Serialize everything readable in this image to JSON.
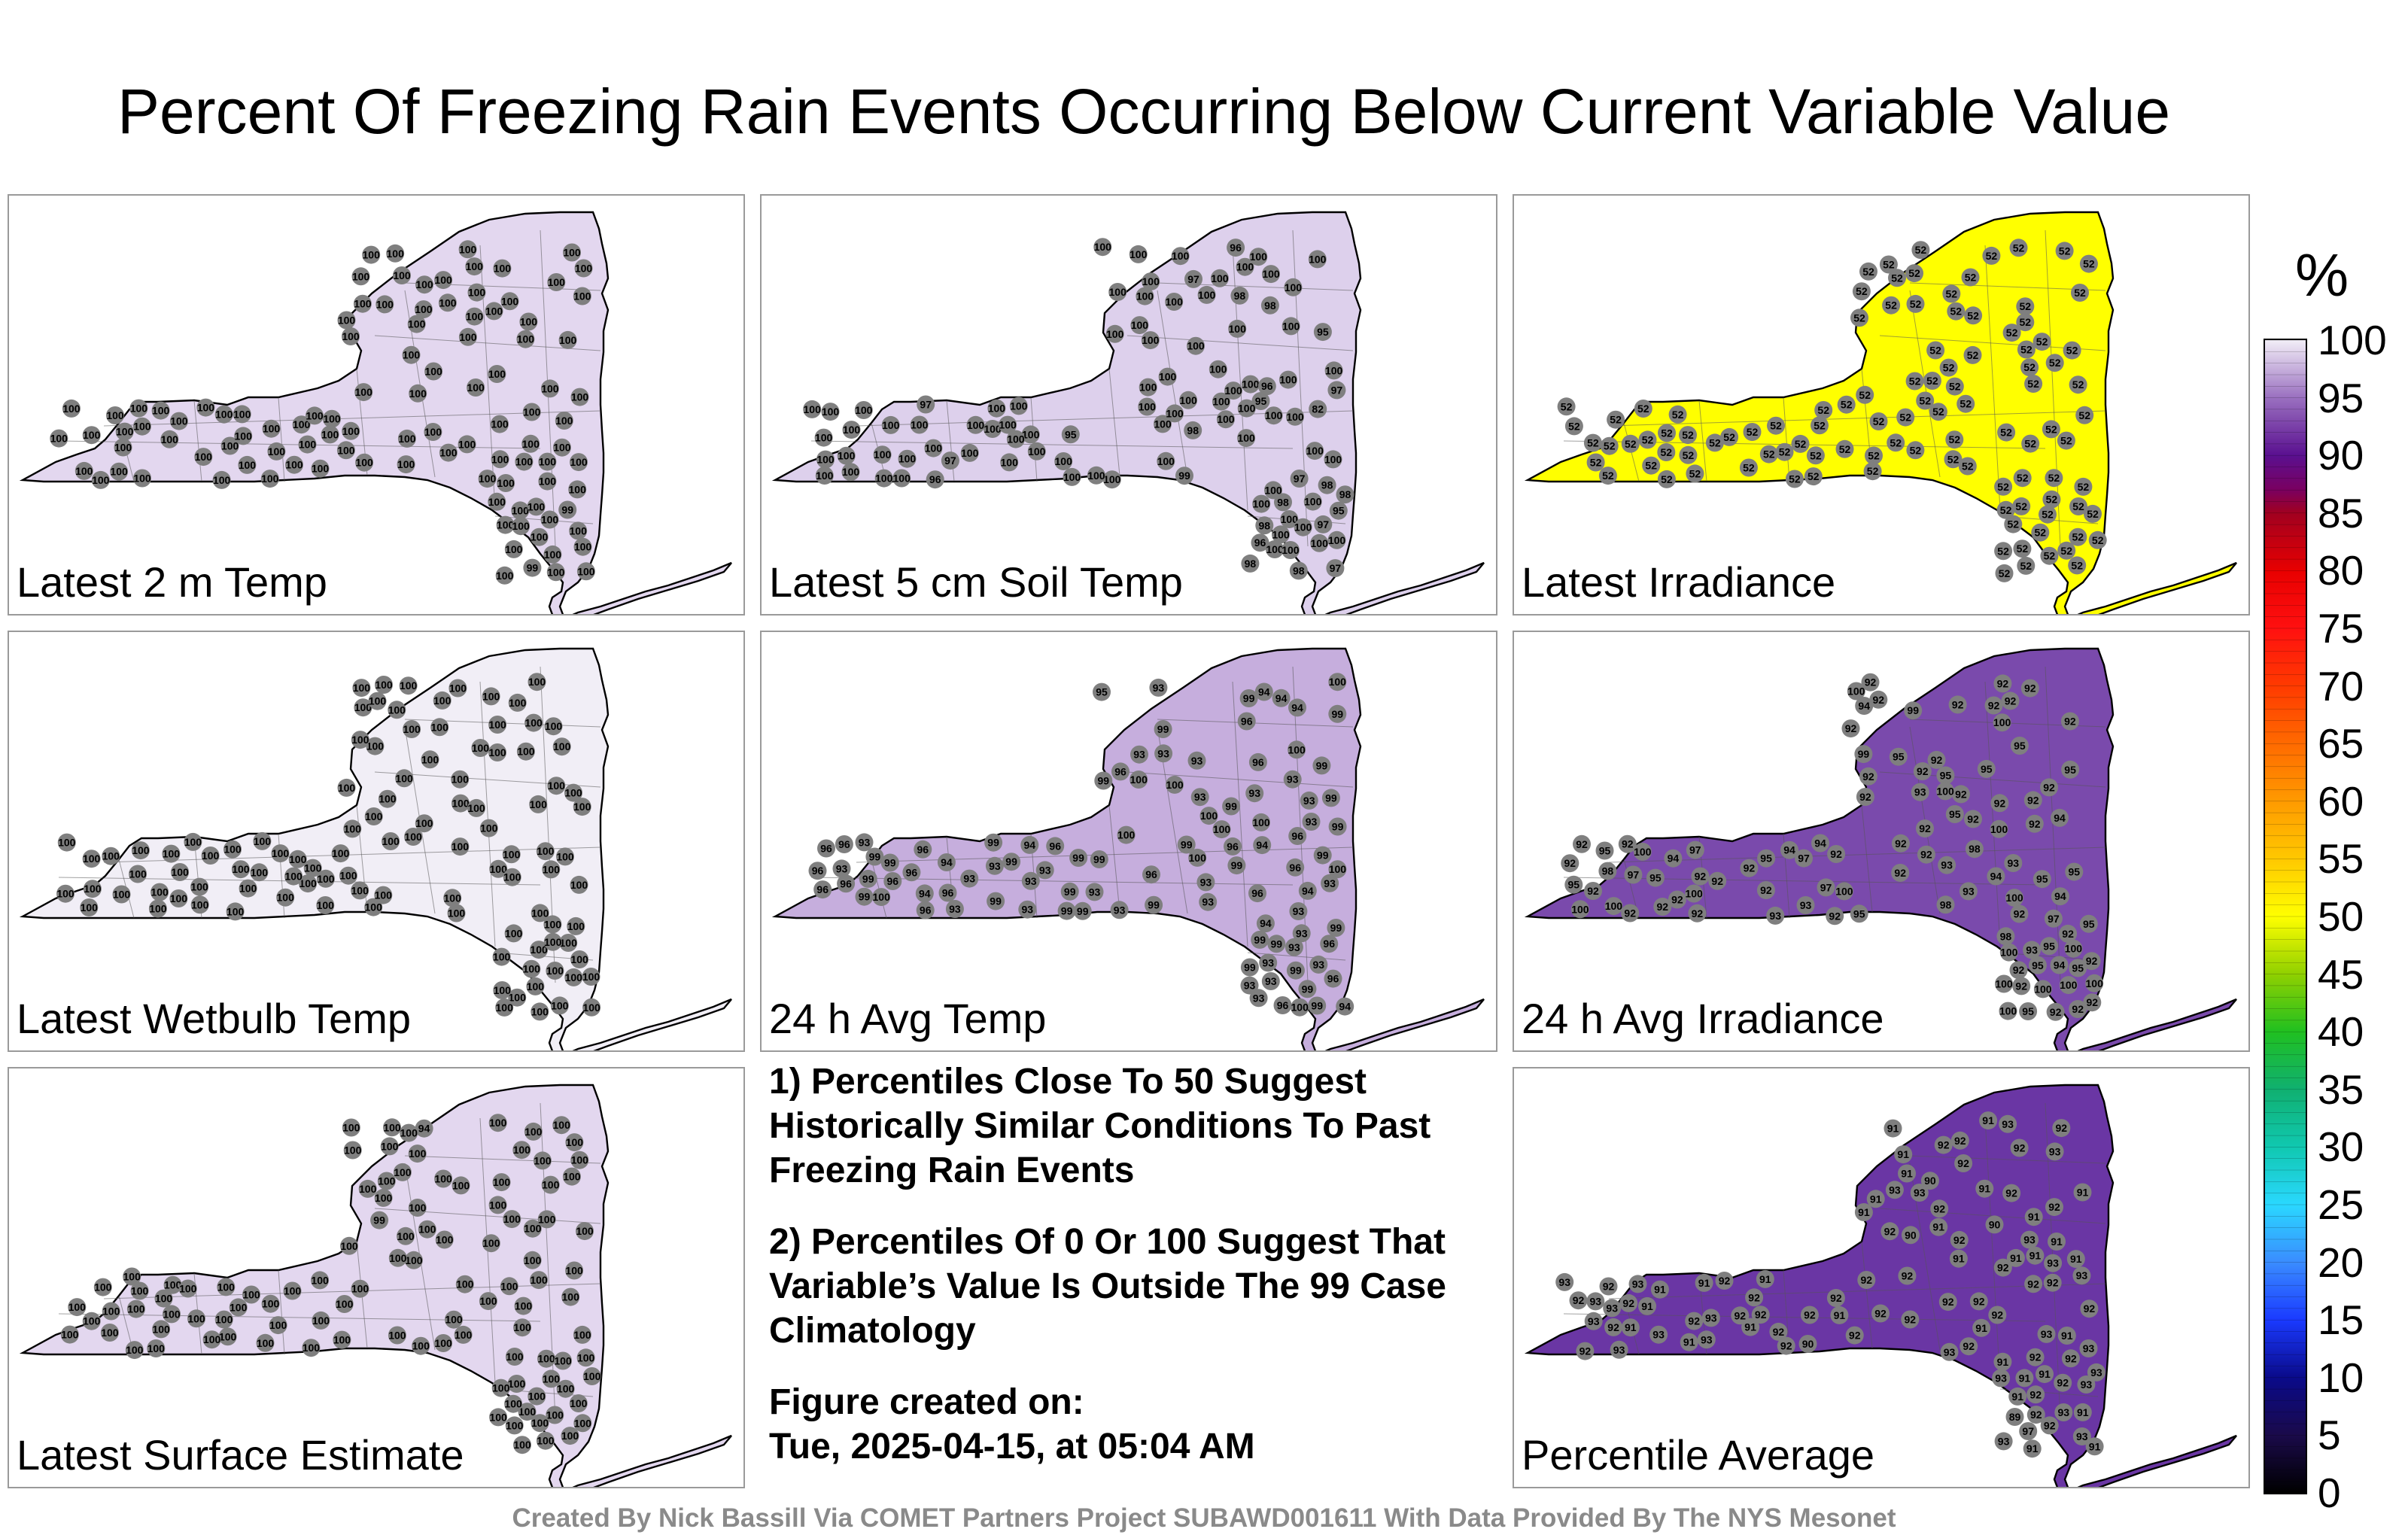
{
  "title": "Percent Of Freezing Rain Events Occurring Below Current Variable Value",
  "colorbar": {
    "unit": "%",
    "ticks": [
      "100",
      "95",
      "90",
      "85",
      "80",
      "75",
      "70",
      "65",
      "60",
      "55",
      "50",
      "45",
      "40",
      "35",
      "30",
      "25",
      "20",
      "15",
      "10",
      "5",
      "0"
    ],
    "stops": [
      {
        "v": 0,
        "c": "#000000"
      },
      {
        "v": 5,
        "c": "#1a0a4a"
      },
      {
        "v": 10,
        "c": "#0a0a8a"
      },
      {
        "v": 15,
        "c": "#1a3aff"
      },
      {
        "v": 20,
        "c": "#3a8cff"
      },
      {
        "v": 25,
        "c": "#2ad8ff"
      },
      {
        "v": 30,
        "c": "#10c8b0"
      },
      {
        "v": 35,
        "c": "#10b070"
      },
      {
        "v": 40,
        "c": "#20c020"
      },
      {
        "v": 45,
        "c": "#90d000"
      },
      {
        "v": 50,
        "c": "#ffff00"
      },
      {
        "v": 55,
        "c": "#ffc800"
      },
      {
        "v": 60,
        "c": "#ff9a00"
      },
      {
        "v": 65,
        "c": "#ff6a00"
      },
      {
        "v": 70,
        "c": "#ff3a00"
      },
      {
        "v": 75,
        "c": "#ff1010"
      },
      {
        "v": 80,
        "c": "#e80000"
      },
      {
        "v": 85,
        "c": "#a00020"
      },
      {
        "v": 87,
        "c": "#7a0060"
      },
      {
        "v": 90,
        "c": "#5a1090"
      },
      {
        "v": 95,
        "c": "#9a70c0"
      },
      {
        "v": 100,
        "c": "#f2eef7"
      }
    ]
  },
  "panels": [
    {
      "label": "Latest 2 m Temp",
      "fill": "#e3d7ef",
      "values": [
        "100",
        "100",
        "99",
        "100",
        "100",
        "100",
        "100",
        "100",
        "100",
        "100",
        "100",
        "100",
        "100",
        "100",
        "100",
        "100",
        "100",
        "100",
        "100",
        "99",
        "100",
        "100",
        "100",
        "100",
        "100",
        "100",
        "100",
        "100",
        "100",
        "100",
        "100",
        "100",
        "100",
        "100",
        "100",
        "100",
        "100",
        "100",
        "100",
        "100",
        "100",
        "100",
        "100",
        "100",
        "100",
        "100",
        "100",
        "100",
        "100",
        "100",
        "100",
        "100",
        "100",
        "100",
        "100",
        "100",
        "100",
        "100",
        "100",
        "100",
        "100",
        "100",
        "100",
        "100",
        "100",
        "100",
        "100",
        "100",
        "100",
        "100",
        "100",
        "100",
        "100",
        "100",
        "100",
        "100",
        "100",
        "100",
        "100",
        "100",
        "100",
        "100",
        "100",
        "100",
        "100",
        "100",
        "100",
        "100",
        "100",
        "100",
        "100",
        "100",
        "100",
        "100",
        "100",
        "100",
        "100",
        "100",
        "100",
        "100",
        "100",
        "100",
        "100",
        "100",
        "100",
        "100"
      ]
    },
    {
      "label": "Latest 5 cm Soil Temp",
      "fill": "#ddd0ec",
      "values": [
        "97",
        "98",
        "97",
        "100",
        "98",
        "95",
        "95",
        "97",
        "100",
        "98",
        "96",
        "82",
        "97",
        "97",
        "99",
        "98",
        "96",
        "98",
        "100",
        "95",
        "100",
        "100",
        "100",
        "98",
        "100",
        "100",
        "97",
        "100",
        "100",
        "100",
        "100",
        "98",
        "100",
        "100",
        "100",
        "100",
        "100",
        "97",
        "100",
        "100",
        "100",
        "100",
        "100",
        "100",
        "100",
        "100",
        "100",
        "100",
        "100",
        "100",
        "95",
        "100",
        "100",
        "98",
        "100",
        "100",
        "100",
        "96",
        "100",
        "100",
        "98",
        "100",
        "100",
        "100",
        "100",
        "100",
        "100",
        "100",
        "100",
        "100",
        "100",
        "100",
        "100",
        "100",
        "100",
        "100",
        "100",
        "100",
        "100",
        "100",
        "100",
        "100",
        "100",
        "100",
        "100",
        "100",
        "100",
        "100",
        "100",
        "100",
        "100",
        "100",
        "100",
        "100",
        "100",
        "100",
        "100",
        "100",
        "100",
        "100",
        "96",
        "100",
        "100",
        "100",
        "100",
        "100"
      ]
    },
    {
      "label": "Latest Irradiance",
      "fill": "#ffff00",
      "values": [
        "52",
        "52",
        "52",
        "52",
        "52",
        "52",
        "52",
        "52",
        "52",
        "52",
        "52",
        "52",
        "52",
        "52",
        "52",
        "52",
        "52",
        "52",
        "52",
        "52",
        "52",
        "52",
        "52",
        "52",
        "52",
        "52",
        "52",
        "52",
        "52",
        "52",
        "52",
        "52",
        "52",
        "52",
        "52",
        "52",
        "52",
        "52",
        "52",
        "52",
        "52",
        "52",
        "52",
        "52",
        "52",
        "52",
        "52",
        "52",
        "52",
        "52",
        "52",
        "52",
        "52",
        "52",
        "52",
        "52",
        "52",
        "52",
        "52",
        "52",
        "52",
        "52",
        "52",
        "52",
        "52",
        "52",
        "52",
        "52",
        "52",
        "52",
        "52",
        "52",
        "52",
        "52",
        "52",
        "52",
        "52",
        "52",
        "52",
        "52",
        "52",
        "52",
        "52",
        "52",
        "52",
        "52",
        "52",
        "52",
        "52",
        "52",
        "52",
        "52",
        "52",
        "52",
        "52",
        "52",
        "52",
        "52",
        "52",
        "52",
        "52",
        "52",
        "52",
        "52",
        "52",
        "52"
      ]
    },
    {
      "label": "Latest Wetbulb Temp",
      "fill": "#f1eef6",
      "values": [
        "100",
        "100",
        "100",
        "100",
        "100",
        "100",
        "100",
        "100",
        "100",
        "100",
        "100",
        "100",
        "100",
        "100",
        "100",
        "100",
        "100",
        "100",
        "100",
        "100",
        "100",
        "100",
        "100",
        "100",
        "100",
        "100",
        "100",
        "100",
        "100",
        "100",
        "100",
        "100",
        "100",
        "100",
        "100",
        "100",
        "100",
        "100",
        "100",
        "100",
        "100",
        "100",
        "100",
        "100",
        "100",
        "100",
        "100",
        "100",
        "100",
        "100",
        "100",
        "100",
        "100",
        "100",
        "100",
        "100",
        "100",
        "100",
        "100",
        "100",
        "100",
        "100",
        "100",
        "100",
        "100",
        "100",
        "100",
        "100",
        "100",
        "100",
        "100",
        "100",
        "100",
        "100",
        "100",
        "100",
        "100",
        "100",
        "100",
        "100",
        "100",
        "100",
        "100",
        "100",
        "100",
        "100",
        "100",
        "100",
        "100",
        "100",
        "100",
        "100",
        "100",
        "100",
        "100",
        "100",
        "100",
        "100",
        "100",
        "100",
        "100",
        "100",
        "100",
        "100",
        "100",
        "100"
      ]
    },
    {
      "label": "24 h Avg Temp",
      "fill": "#c6aedd",
      "values": [
        "99",
        "100",
        "94",
        "94",
        "99",
        "94",
        "94",
        "94",
        "99",
        "93",
        "99",
        "100",
        "96",
        "96",
        "93",
        "99",
        "93",
        "99",
        "94",
        "93",
        "100",
        "93",
        "99",
        "96",
        "99",
        "93",
        "93",
        "93",
        "94",
        "99",
        "93",
        "96",
        "93",
        "96",
        "93",
        "93",
        "99",
        "96",
        "99",
        "96",
        "93",
        "99",
        "93",
        "99",
        "93",
        "96",
        "93",
        "99",
        "100",
        "93",
        "96",
        "99",
        "94",
        "96",
        "93",
        "99",
        "93",
        "100",
        "99",
        "96",
        "93",
        "96",
        "93",
        "99",
        "96",
        "100",
        "93",
        "96",
        "99",
        "93",
        "100",
        "96",
        "93",
        "99",
        "100",
        "94",
        "96",
        "93",
        "99",
        "93",
        "96",
        "100",
        "93",
        "99",
        "99",
        "96",
        "93",
        "99",
        "94",
        "100",
        "93",
        "99",
        "96",
        "93",
        "99",
        "100",
        "99",
        "96",
        "99",
        "100",
        "96",
        "99",
        "99",
        "96",
        "99",
        "95"
      ]
    },
    {
      "label": "24 h Avg Irradiance",
      "fill": "#7a4aac",
      "values": [
        "100",
        "100",
        "100",
        "97",
        "95",
        "100",
        "93",
        "98",
        "98",
        "92",
        "97",
        "100",
        "100",
        "100",
        "100",
        "95",
        "98",
        "100",
        "100",
        "93",
        "95",
        "100",
        "100",
        "92",
        "92",
        "92",
        "93",
        "93",
        "98",
        "95",
        "92",
        "92",
        "92",
        "93",
        "94",
        "95",
        "92",
        "92",
        "93",
        "92",
        "92",
        "94",
        "95",
        "92",
        "92",
        "92",
        "92",
        "92",
        "93",
        "95",
        "92",
        "92",
        "92",
        "92",
        "92",
        "94",
        "95",
        "92",
        "92",
        "92",
        "92",
        "92",
        "95",
        "97",
        "92",
        "92",
        "92",
        "92",
        "92",
        "95",
        "97",
        "92",
        "92",
        "92",
        "92",
        "95",
        "97",
        "100",
        "92",
        "92",
        "92",
        "92",
        "95",
        "95",
        "100",
        "92",
        "92",
        "95",
        "95",
        "94",
        "100",
        "92",
        "95",
        "95",
        "94",
        "100",
        "92",
        "95",
        "94",
        "100",
        "94",
        "92",
        "99",
        "94",
        "92",
        "99"
      ]
    },
    {
      "label": "Latest Surface Estimate",
      "fill": "#e3d7ef",
      "values": [
        "100",
        "100",
        "94",
        "100",
        "100",
        "100",
        "100",
        "100",
        "100",
        "100",
        "100",
        "100",
        "100",
        "100",
        "100",
        "99",
        "100",
        "100",
        "100",
        "100",
        "100",
        "100",
        "100",
        "100",
        "100",
        "100",
        "100",
        "100",
        "100",
        "100",
        "100",
        "100",
        "100",
        "100",
        "100",
        "100",
        "100",
        "100",
        "100",
        "100",
        "100",
        "100",
        "100",
        "100",
        "100",
        "100",
        "100",
        "100",
        "100",
        "100",
        "100",
        "100",
        "100",
        "100",
        "100",
        "100",
        "100",
        "100",
        "100",
        "100",
        "100",
        "100",
        "100",
        "100",
        "100",
        "100",
        "100",
        "100",
        "100",
        "100",
        "100",
        "100",
        "100",
        "100",
        "100",
        "100",
        "100",
        "100",
        "100",
        "100",
        "100",
        "100",
        "100",
        "100",
        "100",
        "100",
        "100",
        "100",
        "100",
        "100",
        "100",
        "100",
        "100",
        "100",
        "100",
        "100",
        "100",
        "100",
        "100",
        "100",
        "100",
        "100",
        "100",
        "100",
        "100",
        "100"
      ]
    },
    {
      "label": "Percentile Average",
      "fill": "#6a36a4",
      "values": [
        "92",
        "93",
        "93",
        "91",
        "97",
        "92",
        "91",
        "93",
        "92",
        "93",
        "91",
        "89",
        "91",
        "91",
        "92",
        "93",
        "91",
        "90",
        "91",
        "91",
        "93",
        "93",
        "92",
        "92",
        "92",
        "92",
        "93",
        "93",
        "91",
        "92",
        "92",
        "92",
        "92",
        "93",
        "92",
        "91",
        "92",
        "92",
        "93",
        "92",
        "91",
        "90",
        "91",
        "93",
        "92",
        "92",
        "92",
        "92",
        "93",
        "91",
        "92",
        "92",
        "90",
        "91",
        "92",
        "92",
        "91",
        "92",
        "92",
        "91",
        "91",
        "92",
        "92",
        "92",
        "91",
        "91",
        "92",
        "91",
        "92",
        "92",
        "91",
        "92",
        "92",
        "91",
        "91",
        "90",
        "92",
        "91",
        "91",
        "92",
        "92",
        "91",
        "92",
        "93",
        "92",
        "92",
        "93",
        "93",
        "93",
        "91",
        "92",
        "93",
        "91",
        "92",
        "91",
        "93",
        "92",
        "93",
        "91",
        "91",
        "93",
        "93",
        "91",
        "93",
        "93",
        "93"
      ]
    }
  ],
  "notes": [
    "1) Percentiles Close To 50 Suggest Historically Similar Conditions To Past Freezing Rain Events",
    "2) Percentiles Of 0 Or 100 Suggest That Variable’s Value Is Outside The 99 Case Climatology"
  ],
  "created_label": "Figure created on:",
  "created_date": "Tue, 2025-04-15, at 05:04 AM",
  "credit": "Created By Nick Bassill Via COMET Partners Project SUBAWD001611 With Data Provided By The NYS Mesonet"
}
